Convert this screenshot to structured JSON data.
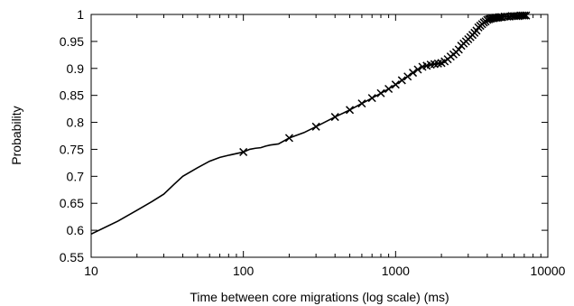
{
  "chart_data": {
    "type": "line",
    "title": "",
    "xlabel": "Time between core migrations (log scale) (ms)",
    "ylabel": "Probability",
    "x_scale": "log",
    "xlim": [
      10,
      10000
    ],
    "ylim": [
      0.55,
      1.0
    ],
    "x_ticks": [
      10,
      100,
      1000,
      10000
    ],
    "y_ticks": [
      0.55,
      0.6,
      0.65,
      0.7,
      0.75,
      0.8,
      0.85,
      0.9,
      0.95,
      1.0
    ],
    "x_tick_labels": [
      "10",
      "100",
      "1000",
      "10000"
    ],
    "y_tick_labels": [
      "0.55",
      "0.6",
      "0.65",
      "0.7",
      "0.75",
      "0.8",
      "0.85",
      "0.9",
      "0.95",
      "1"
    ],
    "grid": false,
    "line_color": "#000000",
    "series": [
      {
        "marker": "x",
        "line_x": [
          10,
          15,
          20,
          25,
          30,
          35,
          40,
          50,
          60,
          70,
          80,
          100,
          110,
          120,
          130,
          140,
          150,
          170,
          200,
          250,
          300,
          400,
          500,
          600,
          700,
          800,
          900,
          1000,
          1100,
          1200,
          1300,
          1400,
          1500,
          1700,
          2000,
          2200,
          2500,
          2700,
          3000,
          3300,
          3500,
          3800,
          4000,
          4300,
          4500,
          5000,
          6000,
          7000
        ],
        "line_y": [
          0.593,
          0.617,
          0.637,
          0.653,
          0.667,
          0.685,
          0.7,
          0.716,
          0.728,
          0.735,
          0.739,
          0.745,
          0.75,
          0.752,
          0.753,
          0.756,
          0.758,
          0.76,
          0.771,
          0.781,
          0.792,
          0.81,
          0.823,
          0.835,
          0.845,
          0.854,
          0.862,
          0.87,
          0.878,
          0.885,
          0.892,
          0.898,
          0.903,
          0.907,
          0.91,
          0.917,
          0.93,
          0.942,
          0.954,
          0.966,
          0.976,
          0.985,
          0.99,
          0.993,
          0.994,
          0.995,
          0.997,
          0.998
        ],
        "markers_x": [
          100,
          200,
          300,
          400,
          500,
          600,
          700,
          800,
          900,
          1000,
          1100,
          1200,
          1300,
          1400,
          1500,
          1600,
          1700,
          1800,
          1900,
          2000,
          2100,
          2200,
          2300,
          2400,
          2500,
          2600,
          2700,
          2800,
          2900,
          3000,
          3100,
          3200,
          3300,
          3400,
          3500,
          3600,
          3700,
          3800,
          3900,
          4000,
          4100,
          4200,
          4300,
          4400,
          4500,
          4600,
          4700,
          4800,
          4900,
          5000,
          5200,
          5400,
          5600,
          5800,
          6000,
          6200,
          6400,
          6600,
          6800,
          7000,
          7200
        ],
        "markers_y": [
          0.745,
          0.771,
          0.792,
          0.81,
          0.823,
          0.835,
          0.845,
          0.854,
          0.862,
          0.87,
          0.878,
          0.885,
          0.892,
          0.898,
          0.903,
          0.905,
          0.907,
          0.908,
          0.909,
          0.91,
          0.913,
          0.917,
          0.922,
          0.926,
          0.93,
          0.935,
          0.942,
          0.946,
          0.95,
          0.954,
          0.958,
          0.962,
          0.966,
          0.97,
          0.976,
          0.979,
          0.982,
          0.985,
          0.987,
          0.99,
          0.991,
          0.992,
          0.993,
          0.993,
          0.994,
          0.994,
          0.994,
          0.995,
          0.995,
          0.995,
          0.996,
          0.996,
          0.996,
          0.997,
          0.997,
          0.997,
          0.997,
          0.998,
          0.998,
          0.998,
          0.998
        ]
      }
    ]
  }
}
